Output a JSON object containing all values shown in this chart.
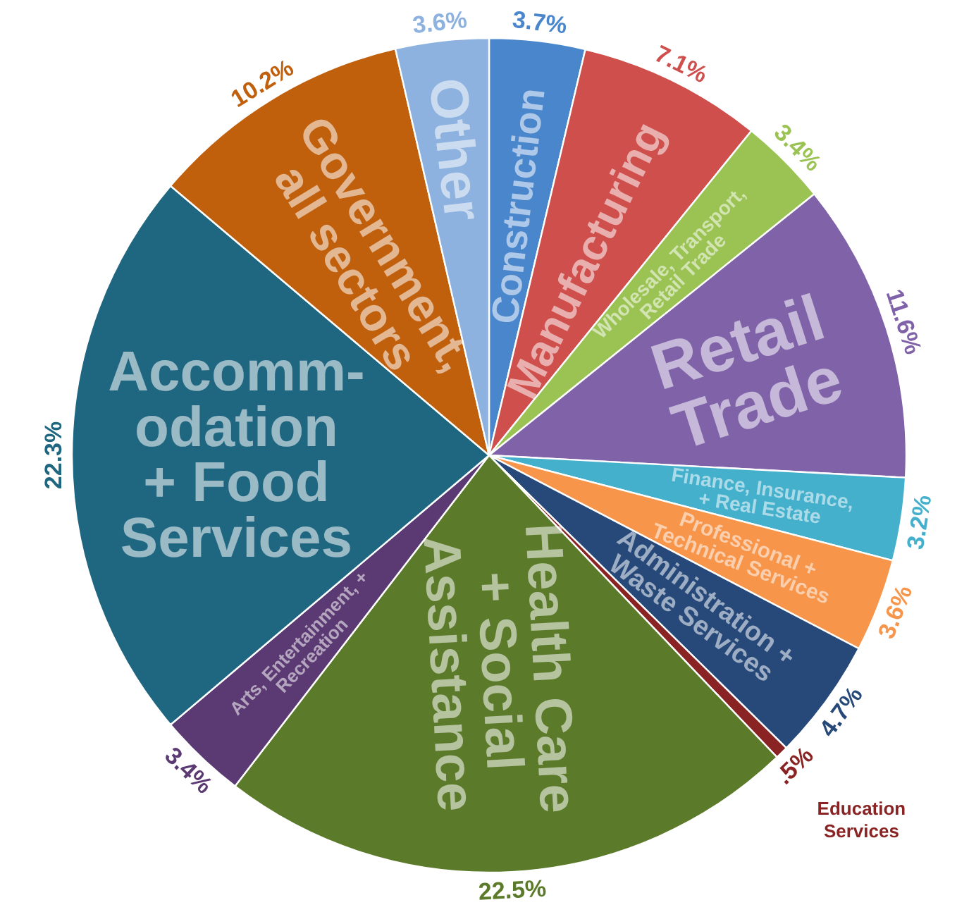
{
  "chart_data": {
    "type": "pie",
    "categories": [
      "Construction",
      "Manufacturing",
      "Wholesale, Transport,\nRetail Trade",
      "Retail\nTrade",
      "Finance, Insurance,\n+ Real Estate",
      "Professional +\nTechnical Services",
      "Administration +\nWaste Services",
      "Education\nServices",
      "Health Care\n+ Social\nAssistance",
      "Arts, Entertainment, +\nRecreation",
      "Accomm-\nodation\n+ Food\nServices",
      "Government,\nall sectors",
      "Other"
    ],
    "values": [
      3.7,
      7.1,
      3.4,
      11.6,
      3.2,
      3.6,
      4.7,
      0.5,
      22.5,
      3.4,
      22.3,
      10.2,
      3.6
    ],
    "value_labels": [
      "3.7%",
      "7.1%",
      "3.4%",
      "11.6%",
      "3.2%",
      "3.6%",
      "4.7%",
      ".5%",
      "22.5%",
      "3.4%",
      "22.3%",
      "10.2%",
      "3.6%"
    ],
    "colors": [
      "#4a86cc",
      "#cf4f4c",
      "#9bc354",
      "#7f62a8",
      "#45b0cc",
      "#f7954a",
      "#27497a",
      "#8a2323",
      "#5b7a2a",
      "#5b3a73",
      "#1f6680",
      "#c05f0c",
      "#8db2df"
    ]
  }
}
